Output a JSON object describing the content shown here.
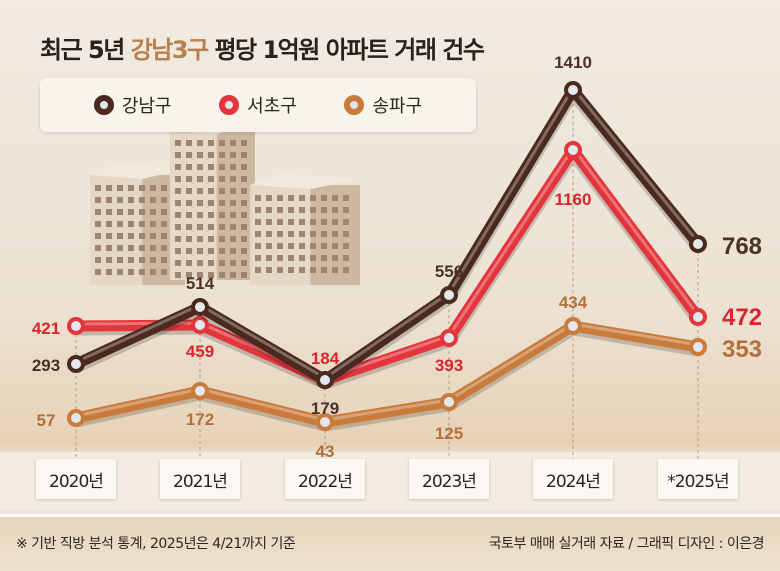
{
  "title": {
    "prefix": "최근 5년 ",
    "highlight": "강남3구",
    "suffix": " 평당 1억원 아파트 거래 건수",
    "highlight_color": "#b8814c"
  },
  "chart_data": {
    "type": "line",
    "title": "최근 5년 강남3구 평당 1억원 아파트 거래 건수",
    "categories": [
      "2020년",
      "2021년",
      "2022년",
      "2023년",
      "2024년",
      "*2025년"
    ],
    "series": [
      {
        "name": "강남구",
        "values": [
          293,
          514,
          179,
          556,
          1410,
          768
        ],
        "color": "#4a2a1e",
        "label_color": "#4a3326"
      },
      {
        "name": "서초구",
        "values": [
          421,
          459,
          184,
          393,
          1160,
          472
        ],
        "color": "#e2363c",
        "label_color": "#d9262c"
      },
      {
        "name": "송파구",
        "values": [
          57,
          172,
          43,
          125,
          434,
          353
        ],
        "color": "#c97b3c",
        "label_color": "#b5703a"
      }
    ],
    "legend": "top-left",
    "grid": false
  },
  "footer": {
    "note": "※ 기반 직방 분석 통계, 2025년은 4/21까지 기준",
    "source": "국토부 매매 실거래 자료 / 그래픽 디자인 : 이은경"
  }
}
